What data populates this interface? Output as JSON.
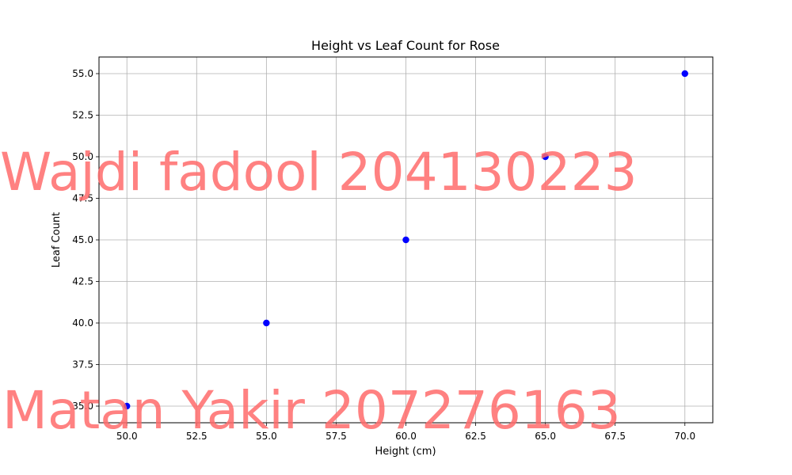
{
  "chart_data": {
    "type": "scatter",
    "title": "Height vs Leaf Count for Rose",
    "xlabel": "Height (cm)",
    "ylabel": "Leaf Count",
    "xlim": [
      49,
      71
    ],
    "ylim": [
      34,
      56
    ],
    "xticks": [
      50.0,
      52.5,
      55.0,
      57.5,
      60.0,
      62.5,
      65.0,
      67.5,
      70.0
    ],
    "yticks": [
      35.0,
      37.5,
      40.0,
      42.5,
      45.0,
      47.5,
      50.0,
      52.5,
      55.0
    ],
    "grid": true,
    "point_color": "#0000ff",
    "points": [
      {
        "x": 50,
        "y": 35
      },
      {
        "x": 55,
        "y": 40
      },
      {
        "x": 60,
        "y": 45
      },
      {
        "x": 65,
        "y": 50
      },
      {
        "x": 70,
        "y": 55
      }
    ]
  },
  "watermarks": [
    "Wajdi fadool 204130223",
    "Matan Yakir 207276163"
  ],
  "watermark_color": "#ff6b6b"
}
